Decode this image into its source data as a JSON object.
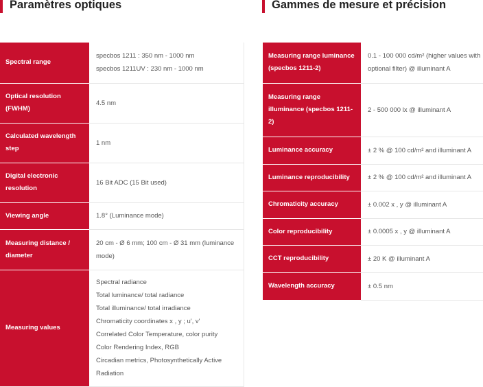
{
  "left": {
    "title": "Paramètres optiques",
    "rows": [
      {
        "label": "Spectral range",
        "values": [
          "specbos 1211 : 350 nm - 1000 nm",
          "specbos 1211UV : 230 nm - 1000 nm"
        ]
      },
      {
        "label": "Optical resolution (FWHM)",
        "values": [
          "4.5 nm"
        ]
      },
      {
        "label": "Calculated wavelength step",
        "values": [
          "1 nm"
        ]
      },
      {
        "label": "Digital electronic resolution",
        "values": [
          "16 Bit ADC (15 Bit used)"
        ]
      },
      {
        "label": "Viewing angle",
        "values": [
          "1.8° (Luminance mode)"
        ]
      },
      {
        "label": "Measuring distance / diameter",
        "values": [
          "20 cm - Ø 6 mm; 100 cm - Ø 31 mm (luminance mode)"
        ]
      },
      {
        "label": "Measuring values",
        "values": [
          "Spectral radiance",
          "Total luminance/ total radiance",
          "Total illuminance/ total irradiance",
          "Chromaticity coordinates x , y ; u', v'",
          "Correlated Color Temperature, color purity",
          "Color Rendering Index, RGB",
          "Circadian metrics, Photosynthetically Active Radiation"
        ]
      }
    ]
  },
  "right": {
    "title": "Gammes de mesure et précision",
    "rows": [
      {
        "label": "Measuring range luminance (specbos 1211-2)",
        "values": [
          "0.1 - 100 000 cd/m² (higher values with optional filter) @ illuminant A"
        ]
      },
      {
        "label": "Measuring range illuminance (specbos 1211-2)",
        "values": [
          "2 - 500 000 lx @ illuminant A"
        ]
      },
      {
        "label": "Luminance accuracy",
        "values": [
          "± 2 % @ 100 cd/m² and illuminant A"
        ]
      },
      {
        "label": "Luminance reproducibility",
        "values": [
          "± 2 % @ 100 cd/m² and illuminant A"
        ]
      },
      {
        "label": "Chromaticity accuracy",
        "values": [
          "± 0.002 x , y @ illuminant A"
        ]
      },
      {
        "label": "Color reproducibility",
        "values": [
          "± 0.0005 x , y @ illuminant A"
        ]
      },
      {
        "label": "CCT reproducibility",
        "values": [
          "± 20 K @ illuminant A"
        ]
      },
      {
        "label": "Wavelength accuracy",
        "values": [
          "± 0.5 nm"
        ]
      }
    ]
  },
  "colors": {
    "accent": "#c8102e",
    "label_text": "#ffffff",
    "value_text": "#555555"
  }
}
